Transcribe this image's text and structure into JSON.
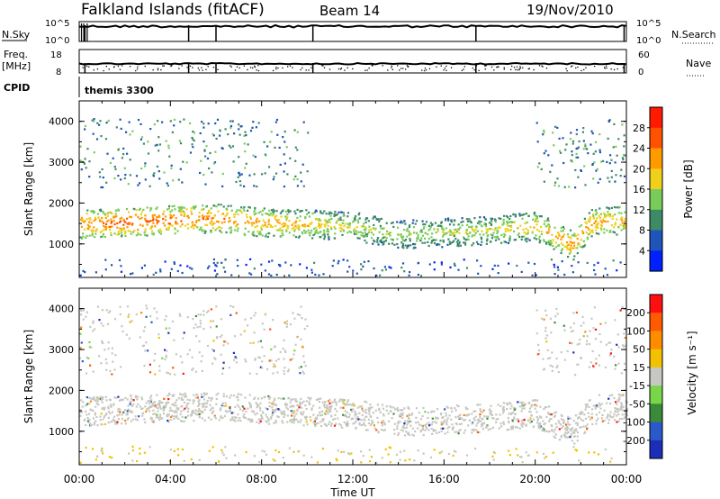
{
  "header": {
    "station": "Falkland Islands (fitACF)",
    "beam": "Beam 14",
    "date": "19/Nov/2010"
  },
  "chart_data": {
    "type": "heatmap",
    "x_axis": {
      "label": "Time UT",
      "ticks": [
        "00:00",
        "04:00",
        "08:00",
        "12:00",
        "16:00",
        "20:00",
        "00:00"
      ],
      "range_hours": [
        0,
        24
      ]
    },
    "strips": {
      "nsky": {
        "label_lines": [
          "N.Sky"
        ],
        "ticks": [
          "10^5",
          "10^0"
        ],
        "right_label": "N.Search",
        "right_ticks": [
          "10^5",
          "10^0"
        ],
        "dropout_hours": [
          0.25,
          4.8,
          6.0,
          10.25,
          17.4,
          23.9
        ]
      },
      "freq": {
        "label_lines": [
          "Freq.",
          "[MHz]"
        ],
        "ticks": [
          "18",
          "8"
        ],
        "right_label": "Nave",
        "right_ticks": [
          "60",
          "0"
        ],
        "dropout_hours": [
          0.25,
          4.8,
          6.0,
          10.25,
          17.4,
          23.9
        ]
      },
      "cpid": {
        "label": "CPID",
        "text": "themis 3300"
      }
    },
    "panels": [
      {
        "quantity": "power",
        "ylabel": "Slant Range [km]",
        "yticks": [
          "4000",
          "3000",
          "2000",
          "1000"
        ],
        "ylim": [
          180,
          4500
        ],
        "colorbar_label": "Power [dB]",
        "colorbar_ticks": [
          "28",
          "24",
          "20",
          "16",
          "12",
          "8",
          "4"
        ],
        "colors": [
          "#0020ff",
          "#1f55b8",
          "#3d8a66",
          "#7acc5a",
          "#f0d01a",
          "#ff9a00",
          "#ff5200",
          "#ff1a00"
        ],
        "scatter_core": [
          {
            "t": 0.0,
            "r": 1500,
            "v": 24
          },
          {
            "t": 2.0,
            "r": 1550,
            "v": 27
          },
          {
            "t": 4.0,
            "r": 1600,
            "v": 26
          },
          {
            "t": 6.0,
            "r": 1650,
            "v": 24
          },
          {
            "t": 8.0,
            "r": 1550,
            "v": 22
          },
          {
            "t": 10.0,
            "r": 1500,
            "v": 20
          },
          {
            "t": 12.0,
            "r": 1450,
            "v": 17
          },
          {
            "t": 14.0,
            "r": 1250,
            "v": 15
          },
          {
            "t": 16.0,
            "r": 1300,
            "v": 16
          },
          {
            "t": 18.0,
            "r": 1350,
            "v": 17
          },
          {
            "t": 20.0,
            "r": 1450,
            "v": 20
          },
          {
            "t": 21.6,
            "r": 1000,
            "v": 24
          },
          {
            "t": 22.5,
            "r": 1550,
            "v": 22
          },
          {
            "t": 24.0,
            "r": 1600,
            "v": 21
          }
        ]
      },
      {
        "quantity": "velocity",
        "ylabel": "Slant Range [km]",
        "yticks": [
          "4000",
          "3000",
          "2000",
          "1000"
        ],
        "ylim": [
          180,
          4500
        ],
        "colorbar_label": "Velocity [m s⁻¹]",
        "colorbar_ticks": [
          "200",
          "100",
          "50",
          "15",
          "-15",
          "-50",
          "-100",
          "-200"
        ],
        "colors": [
          "#1a2eb8",
          "#2c58c8",
          "#3a8a3a",
          "#77d64a",
          "#c8c8c2",
          "#f2c200",
          "#ff8c00",
          "#ff5a00",
          "#ff1010"
        ],
        "ground_scatter_color": "#c8c8c2"
      }
    ]
  }
}
